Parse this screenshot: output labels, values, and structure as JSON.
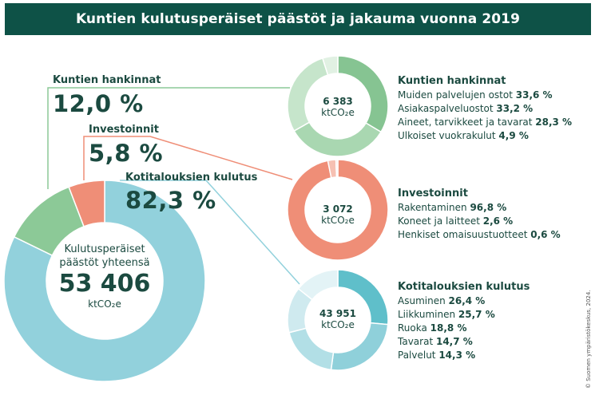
{
  "title": "Kuntien kulutusperäiset päästöt ja jakauma vuonna 2019",
  "credit": "© Suomen ympäristökeskus, 2024.",
  "colors": {
    "header_bg": "#0e5247",
    "text": "#1b4a40",
    "households": "#92d1dc",
    "procurement": "#8cc997",
    "investments": "#ef8e77"
  },
  "chart_data": [
    {
      "type": "pie",
      "name": "total",
      "center_lines": [
        "Kulutusperäiset",
        "päästöt yhteensä"
      ],
      "total": "53 406",
      "unit": "ktCO₂e",
      "slices": [
        {
          "label": "Kotitalouksien kulutus",
          "value": 82.3,
          "pct_label": "82,3 %",
          "color": "#92d1dc"
        },
        {
          "label": "Kuntien hankinnat",
          "value": 12.0,
          "pct_label": "12,0 %",
          "color": "#8cc997"
        },
        {
          "label": "Investoinnit",
          "value": 5.8,
          "pct_label": "5,8 %",
          "color": "#ef8e77"
        }
      ]
    },
    {
      "type": "pie",
      "name": "procurement",
      "title": "Kuntien hankinnat",
      "total": "6 383",
      "unit": "ktCO₂e",
      "slices": [
        {
          "label": "Muiden palvelujen ostot",
          "value": 33.6,
          "pct_label": "33,6 %",
          "color": "#86c492"
        },
        {
          "label": "Asiakaspalveluostot",
          "value": 33.2,
          "pct_label": "33,2 %",
          "color": "#a9d7b1"
        },
        {
          "label": "Aineet, tarvikkeet ja tavarat",
          "value": 28.3,
          "pct_label": "28,3 %",
          "color": "#c6e5cb"
        },
        {
          "label": "Ulkoiset vuokrakulut",
          "value": 4.9,
          "pct_label": "4,9 %",
          "color": "#e1f1e3"
        }
      ]
    },
    {
      "type": "pie",
      "name": "investments",
      "title": "Investoinnit",
      "total": "3 072",
      "unit": "ktCO₂e",
      "slices": [
        {
          "label": "Rakentaminen",
          "value": 96.8,
          "pct_label": "96,8 %",
          "color": "#ef8e77"
        },
        {
          "label": "Koneet ja laitteet",
          "value": 2.6,
          "pct_label": "2,6 %",
          "color": "#f6c0b2"
        },
        {
          "label": "Henkiset omaisuustuotteet",
          "value": 0.6,
          "pct_label": "0,6 %",
          "color": "#fbded6"
        }
      ]
    },
    {
      "type": "pie",
      "name": "households",
      "title": "Kotitalouksien kulutus",
      "total": "43 951",
      "unit": "ktCO₂e",
      "slices": [
        {
          "label": "Asuminen",
          "value": 26.4,
          "pct_label": "26,4 %",
          "color": "#5fbfca"
        },
        {
          "label": "Liikkuminen",
          "value": 25.7,
          "pct_label": "25,7 %",
          "color": "#8fd0da"
        },
        {
          "label": "Ruoka",
          "value": 18.8,
          "pct_label": "18,8 %",
          "color": "#b2dfe6"
        },
        {
          "label": "Tavarat",
          "value": 14.7,
          "pct_label": "14,7 %",
          "color": "#cfeaef"
        },
        {
          "label": "Palvelut",
          "value": 14.3,
          "pct_label": "14,3 %",
          "color": "#e3f3f6"
        }
      ]
    }
  ]
}
